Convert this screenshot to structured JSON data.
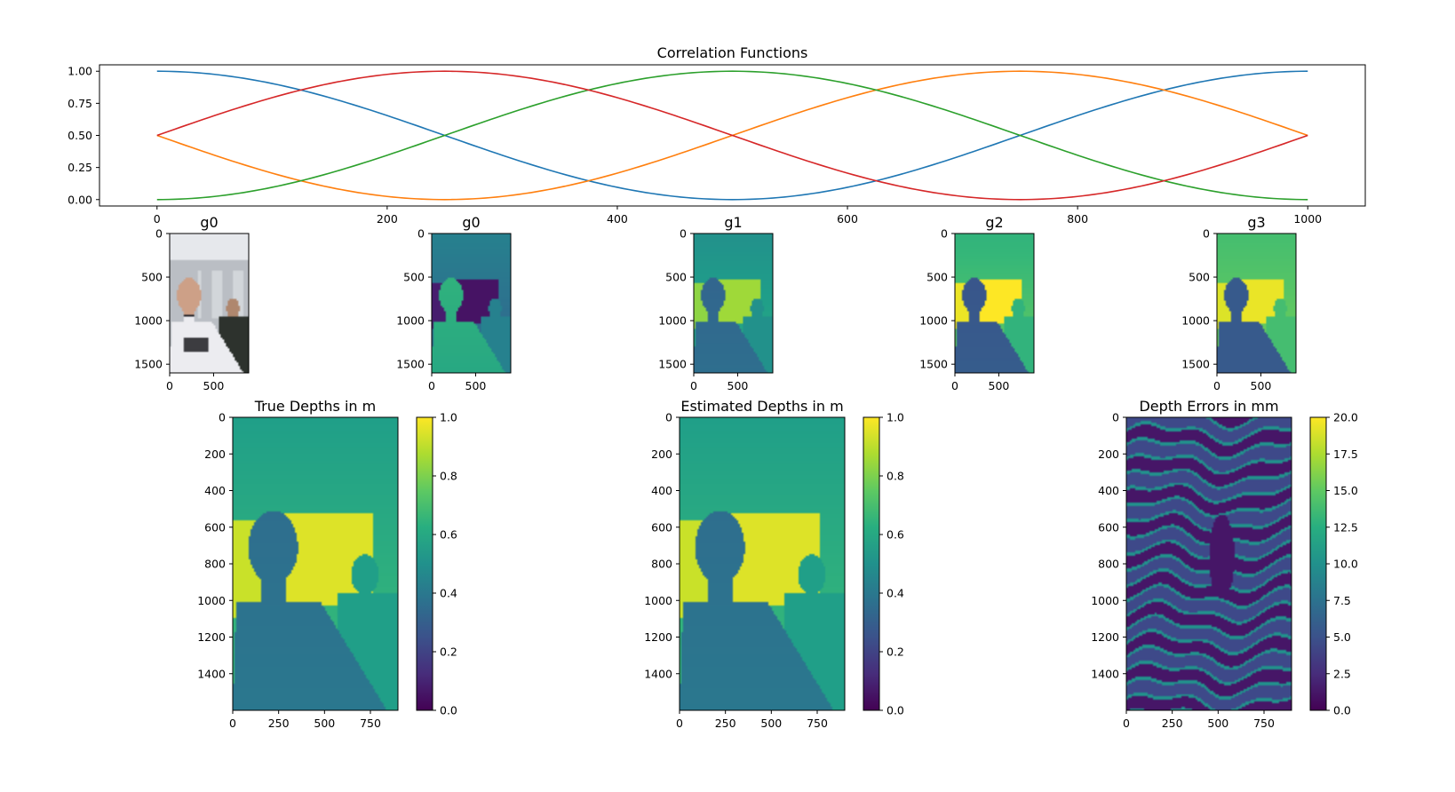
{
  "chart_data": [
    {
      "type": "line",
      "title": "Correlation Functions",
      "xlim": [
        -50,
        1050
      ],
      "ylim": [
        -0.05,
        1.05
      ],
      "x_ticks": [
        "0",
        "200",
        "400",
        "600",
        "800",
        "1000"
      ],
      "y_ticks": [
        "0.00",
        "0.25",
        "0.50",
        "0.75",
        "1.00"
      ],
      "series": [
        {
          "color": "#1f77b4",
          "function": "0.5 + 0.5*cos(2*pi*x/1000)",
          "x": [
            0,
            125,
            250,
            375,
            500,
            625,
            750,
            875,
            1000
          ],
          "values": [
            1.0,
            0.854,
            0.5,
            0.146,
            0.0,
            0.146,
            0.5,
            0.854,
            1.0
          ]
        },
        {
          "color": "#ff7f0e",
          "function": "0.5 + 0.5*cos(2*pi*x/1000 - 3*pi/2)",
          "x": [
            0,
            125,
            250,
            375,
            500,
            625,
            750,
            875,
            1000
          ],
          "values": [
            0.5,
            0.146,
            0.0,
            0.146,
            0.5,
            0.854,
            1.0,
            0.854,
            0.5
          ]
        },
        {
          "color": "#2ca02c",
          "function": "0.5 + 0.5*cos(2*pi*x/1000 - pi)",
          "x": [
            0,
            125,
            250,
            375,
            500,
            625,
            750,
            875,
            1000
          ],
          "values": [
            0.0,
            0.146,
            0.5,
            0.854,
            1.0,
            0.854,
            0.5,
            0.146,
            0.0
          ]
        },
        {
          "color": "#d62728",
          "function": "0.5 + 0.5*cos(2*pi*x/1000 - pi/2)",
          "x": [
            0,
            125,
            250,
            375,
            500,
            625,
            750,
            875,
            1000
          ],
          "values": [
            0.5,
            0.854,
            1.0,
            0.854,
            0.5,
            0.146,
            0.0,
            0.146,
            0.5
          ]
        }
      ]
    },
    {
      "type": "heatmap",
      "title": "g0",
      "kind": "photo",
      "x_ticks": [
        "0",
        "500"
      ],
      "y_ticks": [
        "0",
        "500",
        "1000",
        "1500"
      ]
    },
    {
      "type": "heatmap",
      "title": "g0",
      "kind": "g0",
      "x_ticks": [
        "0",
        "500"
      ],
      "y_ticks": [
        "0",
        "500",
        "1000",
        "1500"
      ]
    },
    {
      "type": "heatmap",
      "title": "g1",
      "kind": "g1",
      "x_ticks": [
        "0",
        "500"
      ],
      "y_ticks": [
        "0",
        "500",
        "1000",
        "1500"
      ]
    },
    {
      "type": "heatmap",
      "title": "g2",
      "kind": "g2",
      "x_ticks": [
        "0",
        "500"
      ],
      "y_ticks": [
        "0",
        "500",
        "1000",
        "1500"
      ]
    },
    {
      "type": "heatmap",
      "title": "g3",
      "kind": "g3",
      "x_ticks": [
        "0",
        "500"
      ],
      "y_ticks": [
        "0",
        "500",
        "1000",
        "1500"
      ]
    },
    {
      "type": "heatmap",
      "title": "True Depths in m",
      "kind": "depth",
      "colormap": "viridis",
      "x_ticks": [
        "0",
        "250",
        "500",
        "750"
      ],
      "y_ticks": [
        "0",
        "200",
        "400",
        "600",
        "800",
        "1000",
        "1200",
        "1400"
      ],
      "colorbar": {
        "range": [
          0.0,
          1.0
        ],
        "ticks": [
          "0.0",
          "0.2",
          "0.4",
          "0.6",
          "0.8",
          "1.0"
        ]
      }
    },
    {
      "type": "heatmap",
      "title": "Estimated Depths in m",
      "kind": "depth",
      "colormap": "viridis",
      "x_ticks": [
        "0",
        "250",
        "500",
        "750"
      ],
      "y_ticks": [
        "0",
        "200",
        "400",
        "600",
        "800",
        "1000",
        "1200",
        "1400"
      ],
      "colorbar": {
        "range": [
          0.0,
          1.0
        ],
        "ticks": [
          "0.0",
          "0.2",
          "0.4",
          "0.6",
          "0.8",
          "1.0"
        ]
      }
    },
    {
      "type": "heatmap",
      "title": "Depth Errors in mm",
      "kind": "error",
      "colormap": "viridis",
      "x_ticks": [
        "0",
        "250",
        "500",
        "750"
      ],
      "y_ticks": [
        "0",
        "200",
        "400",
        "600",
        "800",
        "1000",
        "1200",
        "1400"
      ],
      "colorbar": {
        "range": [
          0.0,
          20.0
        ],
        "ticks": [
          "0.0",
          "2.5",
          "5.0",
          "7.5",
          "10.0",
          "12.5",
          "15.0",
          "17.5",
          "20.0"
        ]
      }
    }
  ]
}
